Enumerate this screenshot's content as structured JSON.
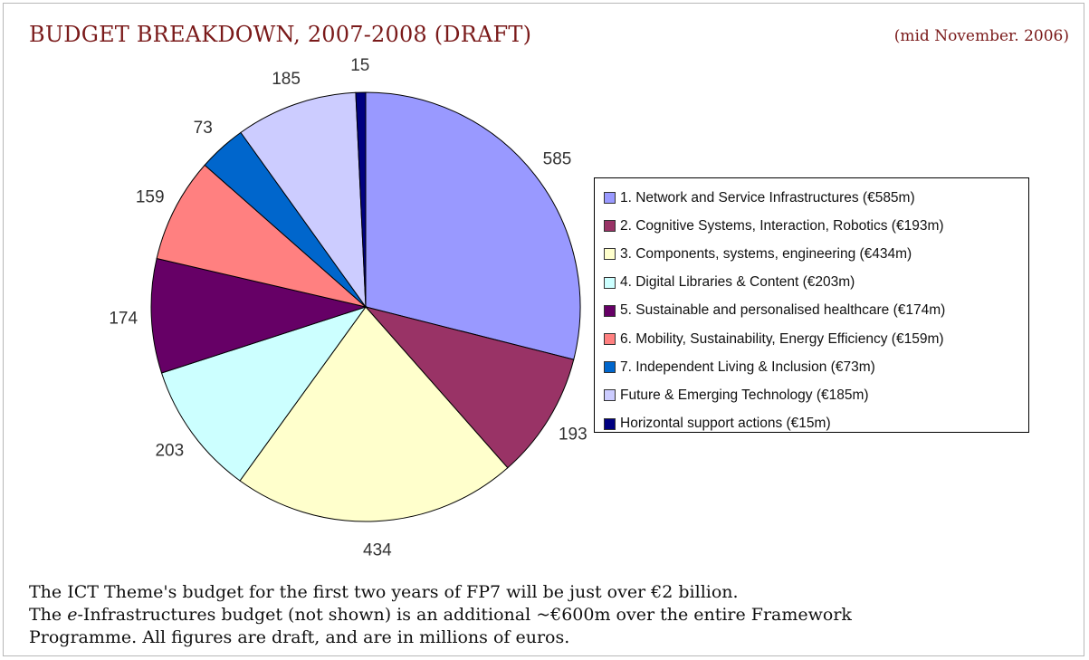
{
  "header": {
    "title": "BUDGET BREAKDOWN, 2007-2008 (DRAFT)",
    "date": "(mid November. 2006)"
  },
  "chart_data": {
    "type": "pie",
    "title": "BUDGET BREAKDOWN, 2007-2008 (DRAFT)",
    "start": "12 o'clock",
    "direction": "clockwise",
    "legend_position": "right",
    "slices": [
      {
        "label": "1. Network and Service Infrastructures (€585m)",
        "value": 585,
        "value_label": "585",
        "color": "#9999ff"
      },
      {
        "label": "2. Cognitive Systems, Interaction, Robotics (€193m)",
        "value": 193,
        "value_label": "193",
        "color": "#993366"
      },
      {
        "label": "3. Components, systems, engineering (€434m)",
        "value": 434,
        "value_label": "434",
        "color": "#ffffcc"
      },
      {
        "label": "4. Digital Libraries & Content (€203m)",
        "value": 203,
        "value_label": "203",
        "color": "#ccffff"
      },
      {
        "label": "5. Sustainable and personalised healthcare (€174m)",
        "value": 174,
        "value_label": "174",
        "color": "#660066"
      },
      {
        "label": "6. Mobility, Sustainability, Energy Efficiency (€159m)",
        "value": 159,
        "value_label": "159",
        "color": "#ff8080"
      },
      {
        "label": "7. Independent Living & Inclusion (€73m)",
        "value": 73,
        "value_label": "73",
        "color": "#0066cc"
      },
      {
        "label": "Future & Emerging Technology (€185m)",
        "value": 185,
        "value_label": "185",
        "color": "#ccccff"
      },
      {
        "label": "Horizontal support actions (€15m)",
        "value": 15,
        "value_label": "15",
        "color": "#000080"
      }
    ]
  },
  "footer": {
    "line1": "The ICT Theme's budget for the first two years of FP7 will be just over €2 billion.",
    "line2_prefix": "The ",
    "line2_italic": "e",
    "line2_suffix": "-Infrastructures budget (not shown) is an additional ~€600m over the entire Framework",
    "line3": "Programme. All figures are draft, and are in millions of euros."
  }
}
